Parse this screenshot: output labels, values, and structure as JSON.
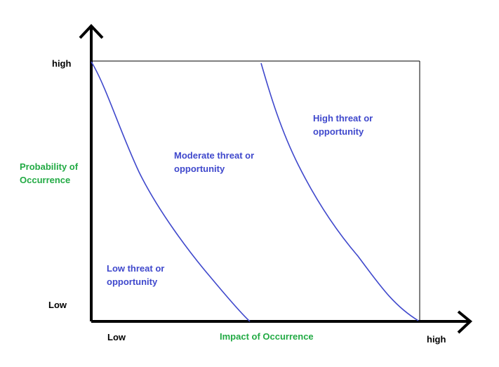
{
  "colors": {
    "axis": "#000000",
    "curve": "#3f48cc",
    "axis_title": "#22aa44",
    "region_text": "#3f48cc"
  },
  "y_axis": {
    "high_label": "high",
    "low_label": "Low",
    "title_line1": "Probability of",
    "title_line2": "Occurrence"
  },
  "x_axis": {
    "low_label": "Low",
    "high_label": "high",
    "title": "Impact of Occurrence"
  },
  "regions": {
    "low": {
      "line1": "Low threat or",
      "line2": "opportunity"
    },
    "moderate": {
      "line1": "Moderate threat or",
      "line2": "opportunity"
    },
    "high": {
      "line1": "High threat or",
      "line2": "opportunity"
    }
  }
}
